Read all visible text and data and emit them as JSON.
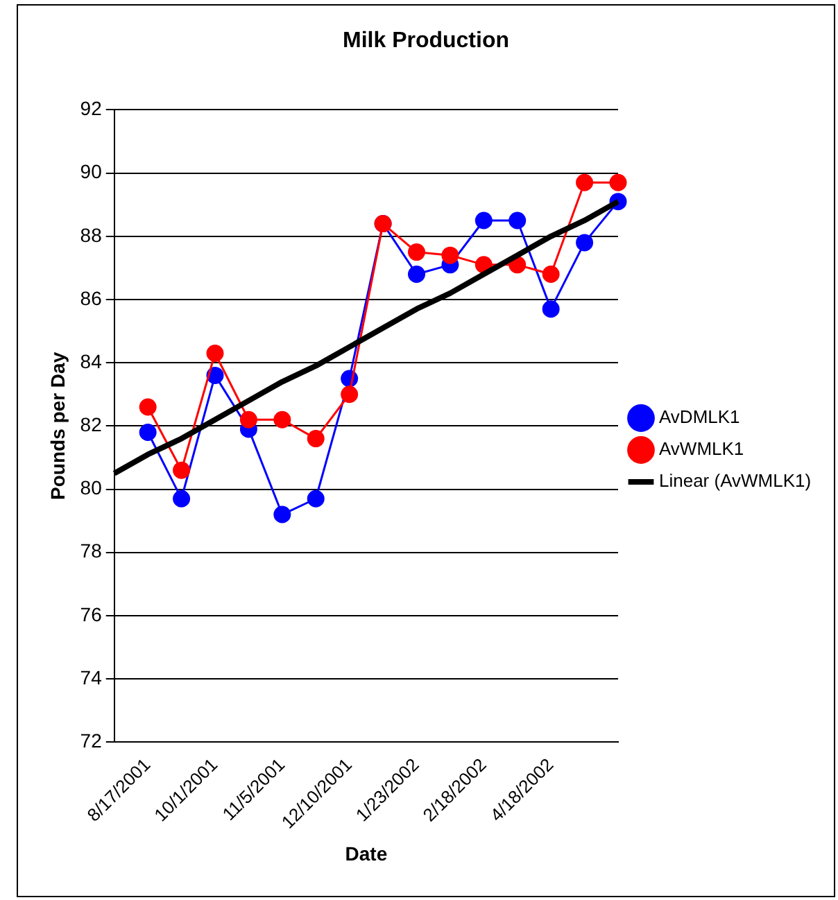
{
  "chart_data": {
    "type": "line",
    "title": "Milk Production",
    "xlabel": "Date",
    "ylabel": "Pounds per Day",
    "categories": [
      null,
      "8/17/2001",
      null,
      "10/1/2001",
      null,
      "11/5/2001",
      null,
      "12/10/2001",
      null,
      "1/23/2002",
      null,
      "2/18/2002",
      null,
      "4/18/2002",
      null,
      null
    ],
    "series": [
      {
        "name": "AvDMLK1",
        "color": "#0000ff",
        "marker": "circle",
        "values": [
          null,
          81.8,
          79.7,
          83.6,
          81.9,
          79.2,
          79.7,
          83.5,
          88.4,
          86.8,
          87.1,
          88.5,
          88.5,
          85.7,
          87.8,
          89.1
        ]
      },
      {
        "name": "AvWMLK1",
        "color": "#ff0000",
        "marker": "circle",
        "values": [
          null,
          82.6,
          80.6,
          84.3,
          82.2,
          82.2,
          81.6,
          83.0,
          88.4,
          87.5,
          87.4,
          87.1,
          87.1,
          86.8,
          89.7,
          89.7
        ]
      },
      {
        "name": "Linear (AvWMLK1)",
        "color": "#000000",
        "marker": "none",
        "values": [
          80.5,
          81.1,
          81.6,
          82.2,
          82.8,
          83.4,
          83.9,
          84.5,
          85.1,
          85.7,
          86.2,
          86.8,
          87.4,
          88.0,
          88.5,
          89.1
        ]
      }
    ],
    "ylim": [
      72,
      92
    ],
    "yticks": [
      72,
      74,
      76,
      78,
      80,
      82,
      84,
      86,
      88,
      90,
      92
    ],
    "grid": "y",
    "legend": "right"
  }
}
